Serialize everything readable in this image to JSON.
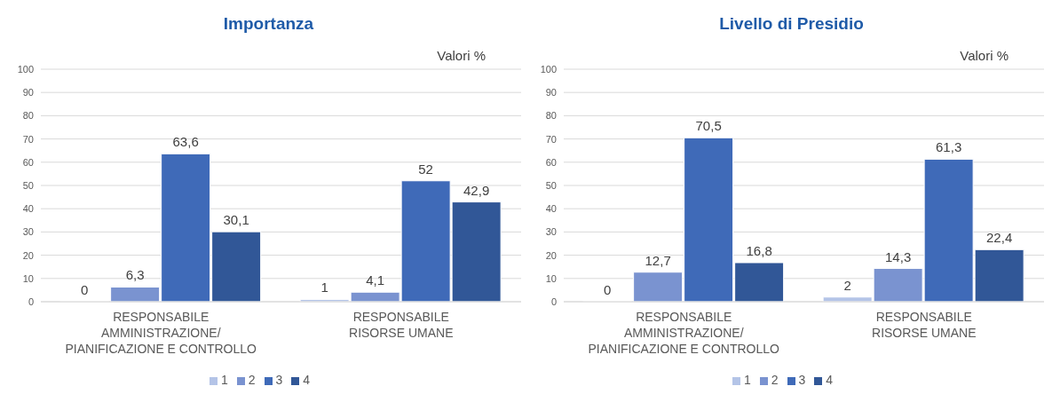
{
  "chart_data": [
    {
      "type": "bar",
      "title": "Importanza",
      "annotations": [
        "Valori %"
      ],
      "categories": [
        "RESPONSABILE\nAMMINISTRAZIONE/\nPIANIFICAZIONE E CONTROLLO",
        "RESPONSABILE\nRISORSE UMANE"
      ],
      "series": [
        {
          "name": "1",
          "color": "#b4c4e7",
          "values": [
            0,
            1
          ],
          "value_labels": [
            "0",
            "1"
          ]
        },
        {
          "name": "2",
          "color": "#7a93d0",
          "values": [
            6.3,
            4.1
          ],
          "value_labels": [
            "6,3",
            "4,1"
          ]
        },
        {
          "name": "3",
          "color": "#3f6ab8",
          "values": [
            63.6,
            52
          ],
          "value_labels": [
            "63,6",
            "52"
          ]
        },
        {
          "name": "4",
          "color": "#315797",
          "values": [
            30.1,
            42.9
          ],
          "value_labels": [
            "30,1",
            "42,9"
          ]
        }
      ],
      "ylim": [
        0,
        100
      ],
      "yticks": [
        0,
        10,
        20,
        30,
        40,
        50,
        60,
        70,
        80,
        90,
        100
      ],
      "grid": "y",
      "legend": "bottom"
    },
    {
      "type": "bar",
      "title": "Livello di Presidio",
      "annotations": [
        "Valori %"
      ],
      "categories": [
        "RESPONSABILE\nAMMINISTRAZIONE/\nPIANIFICAZIONE E CONTROLLO",
        "RESPONSABILE\nRISORSE UMANE"
      ],
      "series": [
        {
          "name": "1",
          "color": "#b4c4e7",
          "values": [
            0,
            2
          ],
          "value_labels": [
            "0",
            "2"
          ]
        },
        {
          "name": "2",
          "color": "#7a93d0",
          "values": [
            12.7,
            14.3
          ],
          "value_labels": [
            "12,7",
            "14,3"
          ]
        },
        {
          "name": "3",
          "color": "#3f6ab8",
          "values": [
            70.5,
            61.3
          ],
          "value_labels": [
            "70,5",
            "61,3"
          ]
        },
        {
          "name": "4",
          "color": "#315797",
          "values": [
            16.8,
            22.4
          ],
          "value_labels": [
            "16,8",
            "22,4"
          ]
        }
      ],
      "ylim": [
        0,
        100
      ],
      "yticks": [
        0,
        10,
        20,
        30,
        40,
        50,
        60,
        70,
        80,
        90,
        100
      ],
      "grid": "y",
      "legend": "bottom"
    }
  ]
}
